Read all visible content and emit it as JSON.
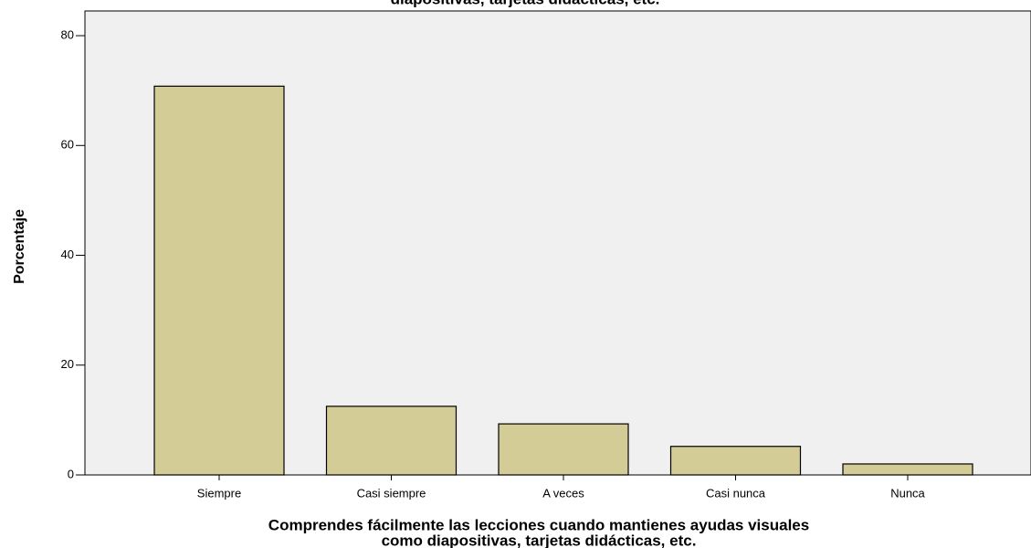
{
  "chart_data": {
    "type": "bar",
    "title": "diapositivas, tarjetas didácticas, etc.",
    "categories": [
      "Siempre",
      "Casi siempre",
      "A veces",
      "Casi nunca",
      "Nunca"
    ],
    "values": [
      70.8,
      12.5,
      9.3,
      5.2,
      2.0
    ],
    "color": "#d3cc96",
    "ylabel": "Porcentaje",
    "xlabel": [
      "Comprendes fácilmente las lecciones cuando mantienes ayudas visuales",
      "como diapositivas, tarjetas didácticas, etc."
    ],
    "ylim": [
      0,
      84.5
    ],
    "yticks": [
      0,
      20,
      40,
      60,
      80
    ],
    "grid": false
  }
}
